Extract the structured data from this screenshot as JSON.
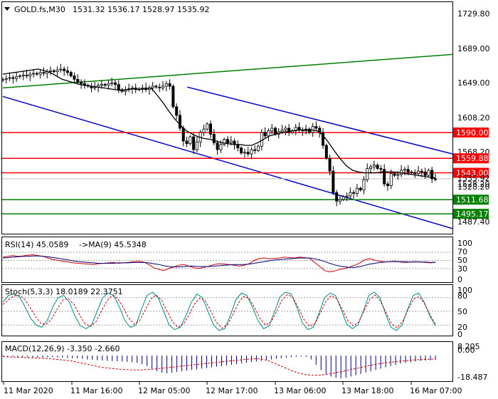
{
  "header": {
    "symbol_info": "GOLD.fs,M30",
    "ohlc": "1531.32 1536.17 1528.97 1535.92"
  },
  "chart_data": [
    {
      "type": "candlestick",
      "title": "GOLD.fs,M30 1531.32 1536.17 1528.97 1535.92",
      "price_axis_ticks": [
        "1729.80",
        "1689.00",
        "1649.00",
        "1608.20",
        "1568.20",
        "1528.20",
        "1487.40"
      ],
      "ylim": [
        1472,
        1742
      ],
      "x_tick_labels": [
        "11 Mar 2020",
        "11 Mar 16:00",
        "12 Mar 05:00",
        "12 Mar 17:00",
        "13 Mar 06:00",
        "13 Mar 18:00",
        "16 Mar 07:00"
      ],
      "close": [
        1652,
        1653,
        1654,
        1653,
        1655,
        1656,
        1657,
        1656,
        1658,
        1659,
        1658,
        1660,
        1659,
        1661,
        1662,
        1661,
        1663,
        1664,
        1662,
        1660,
        1656,
        1652,
        1649,
        1647,
        1645,
        1644,
        1642,
        1643,
        1645,
        1646,
        1645,
        1647,
        1648,
        1646,
        1640,
        1638,
        1640,
        1641,
        1642,
        1640,
        1641,
        1642,
        1640,
        1642,
        1644,
        1643,
        1642,
        1644,
        1647,
        1644,
        1620,
        1610,
        1595,
        1580,
        1577,
        1585,
        1570,
        1579,
        1590,
        1594,
        1600,
        1588,
        1578,
        1570,
        1576,
        1582,
        1578,
        1580,
        1576,
        1572,
        1566,
        1567,
        1565,
        1570,
        1569,
        1574,
        1590,
        1586,
        1592,
        1595,
        1588,
        1591,
        1593,
        1595,
        1590,
        1592,
        1596,
        1593,
        1592,
        1594,
        1590,
        1597,
        1595,
        1590,
        1575,
        1560,
        1545,
        1520,
        1510,
        1512,
        1515,
        1516,
        1520,
        1519,
        1525,
        1523,
        1535,
        1548,
        1550,
        1552,
        1548,
        1547,
        1530,
        1528,
        1542,
        1540,
        1541,
        1546,
        1547,
        1544,
        1543,
        1542,
        1545,
        1544,
        1540,
        1546,
        1536,
        1535.92
      ],
      "moving_average": [
        1658,
        1659,
        1660,
        1661,
        1662,
        1663,
        1664,
        1662,
        1660,
        1656,
        1652,
        1650,
        1648,
        1646,
        1645,
        1644,
        1643,
        1642,
        1641,
        1640,
        1639,
        1640,
        1641,
        1640,
        1641,
        1642,
        1634,
        1625,
        1615,
        1606,
        1598,
        1592,
        1588,
        1585,
        1583,
        1582,
        1580,
        1578,
        1577,
        1576,
        1576,
        1575,
        1575,
        1578,
        1582,
        1586,
        1588,
        1590,
        1591,
        1592,
        1593,
        1593,
        1593,
        1592,
        1587,
        1578,
        1568,
        1559,
        1551,
        1546,
        1544,
        1543,
        1543,
        1543,
        1544,
        1544,
        1544,
        1543,
        1542,
        1541,
        1540,
        1539,
        1538,
        1537
      ],
      "levels": [
        {
          "label": "1590.00",
          "value": 1590.0,
          "color": "#ff0000"
        },
        {
          "label": "1559.88",
          "value": 1559.88,
          "color": "#ff0000"
        },
        {
          "label": "1543.00",
          "value": 1543.0,
          "color": "#ff0000"
        },
        {
          "label": "1511.68",
          "value": 1511.68,
          "color": "#008000"
        },
        {
          "label": "1495.17",
          "value": 1495.17,
          "color": "#008000"
        }
      ],
      "current_price": {
        "label": "1535.92",
        "value": 1535.92
      },
      "current_price_overlap_label": "1528.20",
      "trendlines": [
        {
          "name": "green-upper",
          "color": "#008000",
          "from": [
            0,
            1642
          ],
          "to": [
            1,
            1681
          ]
        },
        {
          "name": "blue-channel-top",
          "color": "#0000cc",
          "from": [
            0.41,
            1643
          ],
          "to": [
            1,
            1565
          ]
        },
        {
          "name": "blue-channel-bottom",
          "color": "#0000cc",
          "from": [
            0,
            1632
          ],
          "to": [
            1,
            1478
          ]
        }
      ],
      "colors": {
        "bull": "#ffffff",
        "bear": "#000000",
        "ma": "#000000"
      }
    },
    {
      "type": "line",
      "title": "RSI(14) 45.0589 ->MA(9) 45.5348",
      "label_rsi": "RSI(14) 45.0589",
      "label_ma": "->MA(9) 45.5348",
      "ylim": [
        0,
        100
      ],
      "y_ticks": [
        "100",
        "70",
        "50",
        "30",
        "0"
      ],
      "series": [
        {
          "color": "#cc0000",
          "values": [
            58,
            60,
            62,
            60,
            61,
            63,
            64,
            62,
            60,
            56,
            52,
            50,
            48,
            46,
            44,
            43,
            42,
            41,
            40,
            42,
            43,
            44,
            45,
            43,
            44,
            45,
            47,
            48,
            46,
            40,
            32,
            28,
            25,
            30,
            34,
            38,
            40,
            36,
            32,
            30,
            33,
            36,
            40,
            42,
            41,
            40,
            38,
            36,
            38,
            42,
            50,
            55,
            56,
            54,
            55,
            56,
            58,
            57,
            56,
            58,
            57,
            55,
            45,
            35,
            25,
            22,
            24,
            28,
            30,
            34,
            38,
            44,
            52,
            54,
            50,
            48,
            46,
            47,
            48,
            46,
            45,
            46,
            47,
            46,
            45,
            44,
            45.0589
          ]
        },
        {
          "color": "#000080",
          "values": [
            56,
            57,
            58,
            59,
            60,
            60,
            61,
            61,
            60,
            59,
            57,
            55,
            53,
            51,
            49,
            47,
            46,
            45,
            44,
            43,
            43,
            43,
            43,
            44,
            44,
            44,
            45,
            45,
            45,
            44,
            42,
            40,
            37,
            35,
            34,
            34,
            35,
            36,
            36,
            35,
            35,
            35,
            36,
            37,
            38,
            39,
            40,
            40,
            40,
            41,
            43,
            45,
            47,
            49,
            51,
            52,
            53,
            54,
            55,
            56,
            56,
            56,
            54,
            51,
            47,
            43,
            39,
            36,
            34,
            33,
            33,
            35,
            38,
            41,
            43,
            45,
            46,
            47,
            47,
            47,
            47,
            46,
            46,
            46,
            46,
            45,
            45.5348
          ]
        }
      ]
    },
    {
      "type": "line",
      "title": "Stoch(5,3,3) 18.0189 22.3751",
      "label": "Stoch(5,3,3) 18.0189 22.3751",
      "ylim": [
        0,
        100
      ],
      "y_ticks": [
        "100",
        "80",
        "50",
        "20",
        "0"
      ],
      "series": [
        {
          "color": "#008b8b",
          "values": [
            70,
            85,
            88,
            82,
            60,
            35,
            20,
            15,
            30,
            60,
            80,
            85,
            70,
            40,
            18,
            12,
            20,
            50,
            80,
            90,
            85,
            60,
            30,
            15,
            20,
            55,
            85,
            92,
            80,
            50,
            20,
            10,
            15,
            40,
            70,
            88,
            80,
            50,
            20,
            8,
            12,
            40,
            75,
            90,
            85,
            60,
            30,
            12,
            18,
            50,
            82,
            92,
            88,
            60,
            25,
            10,
            15,
            45,
            80,
            90,
            85,
            55,
            22,
            12,
            20,
            50,
            85,
            92,
            80,
            45,
            15,
            8,
            20,
            55,
            85,
            90,
            70,
            40,
            18.0189
          ]
        },
        {
          "color": "#cc0000",
          "values": [
            65,
            75,
            84,
            85,
            76,
            58,
            38,
            23,
            22,
            35,
            57,
            75,
            78,
            65,
            43,
            23,
            17,
            27,
            50,
            73,
            85,
            78,
            58,
            35,
            22,
            30,
            53,
            77,
            86,
            74,
            50,
            27,
            15,
            22,
            42,
            66,
            79,
            73,
            50,
            26,
            13,
            20,
            42,
            68,
            83,
            78,
            58,
            34,
            20,
            27,
            50,
            75,
            87,
            80,
            57,
            32,
            17,
            23,
            47,
            72,
            85,
            77,
            54,
            30,
            18,
            27,
            52,
            76,
            86,
            72,
            47,
            23,
            14,
            28,
            53,
            77,
            82,
            67,
            43,
            22.3751
          ]
        }
      ]
    },
    {
      "type": "bar",
      "title": "MACD(12,26,9) -3.350 -2.660",
      "label": "MACD(12,26,9) -3.350 -2.660",
      "y_ticks": [
        "8.205",
        "0.00",
        "-18.487"
      ],
      "ylim": [
        -18.487,
        8.205
      ],
      "histogram": [
        -0.5,
        -0.6,
        -0.8,
        -1,
        -1.2,
        -1.3,
        -1.4,
        -1.5,
        -1.4,
        -1.3,
        -1.2,
        -1.4,
        -1.6,
        -1.8,
        -2,
        -2.2,
        -2.5,
        -3,
        -3.2,
        -3.5,
        -3.8,
        -4,
        -4.2,
        -4.3,
        -4.5,
        -4.8,
        -5,
        -5.5,
        -6.5,
        -8,
        -10,
        -12,
        -13,
        -13.5,
        -13,
        -12.5,
        -12,
        -11.5,
        -11,
        -10.5,
        -10,
        -9.5,
        -9,
        -8.5,
        -8,
        -7.5,
        -7,
        -6.5,
        -6,
        -5.5,
        -5,
        -4.5,
        -4,
        -3.5,
        -3,
        -2.5,
        -2,
        -1.5,
        -1.2,
        -1,
        -0.8,
        -1,
        -3,
        -7,
        -11,
        -14,
        -16,
        -17,
        -17.5,
        -17,
        -16,
        -15,
        -14,
        -13,
        -12,
        -11,
        -10,
        -9,
        -8,
        -7,
        -6,
        -5.5,
        -5,
        -4.5,
        -4,
        -3.8,
        -3.6,
        -3.35
      ],
      "signal": [
        -0.8,
        -1,
        -1.2,
        -1.4,
        -1.6,
        -1.8,
        -2,
        -2.3,
        -2.6,
        -3,
        -3.5,
        -4,
        -5,
        -6,
        -7,
        -8,
        -9,
        -9.5,
        -10,
        -10.5,
        -10.8,
        -11,
        -11,
        -10.8,
        -10.5,
        -10,
        -9.5,
        -9,
        -8.5,
        -8,
        -7.5,
        -7,
        -6.5,
        -6,
        -5.5,
        -5,
        -4.5,
        -4,
        -3.5,
        -3,
        -2.6,
        -2.4,
        -2.8,
        -4,
        -6,
        -8,
        -10,
        -12,
        -13.5,
        -14.5,
        -15,
        -15,
        -14.5,
        -14,
        -13,
        -12,
        -11,
        -10,
        -9,
        -8,
        -7,
        -6.2,
        -5.5,
        -5,
        -4.5,
        -4,
        -3.5,
        -3.2,
        -3,
        -2.8,
        -2.66
      ],
      "colors": {
        "histogram": "#000080",
        "signal": "#cc0000"
      }
    }
  ]
}
